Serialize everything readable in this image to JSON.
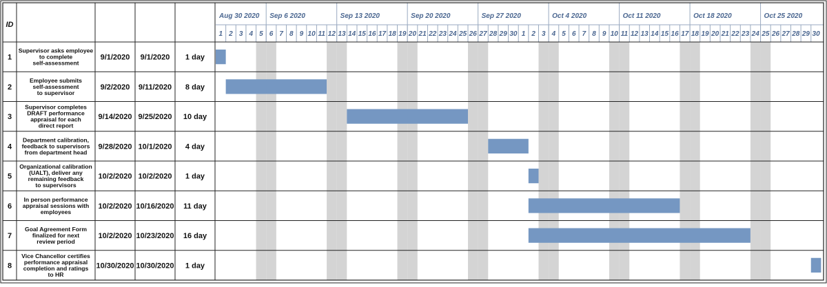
{
  "chart_data": {
    "type": "gantt",
    "id_header": "ID",
    "week_labels": [
      "Aug 30 2020",
      "Sep 6 2020",
      "Sep 13 2020",
      "Sep 20 2020",
      "Sep 27 2020",
      "Oct 4 2020",
      "Oct 11 2020",
      "Oct 18 2020",
      "Oct 25 2020"
    ],
    "day_labels": [
      "1",
      "2",
      "3",
      "4",
      "5",
      "6",
      "7",
      "8",
      "9",
      "10",
      "11",
      "12",
      "13",
      "14",
      "15",
      "16",
      "17",
      "18",
      "19",
      "20",
      "21",
      "22",
      "23",
      "24",
      "25",
      "26",
      "27",
      "28",
      "29",
      "30",
      "1",
      "2",
      "3",
      "4",
      "5",
      "6",
      "7",
      "8",
      "9",
      "10",
      "11",
      "12",
      "13",
      "14",
      "15",
      "16",
      "17",
      "18",
      "19",
      "20",
      "21",
      "22",
      "23",
      "24",
      "25",
      "26",
      "27",
      "28",
      "29",
      "30"
    ],
    "tasks": [
      {
        "id": "1",
        "name_lines": [
          "Supervisor asks employee",
          "to complete",
          "self-assessment"
        ],
        "start": "9/1/2020",
        "finish": "9/1/2020",
        "duration": "1 day",
        "bar_start": "2020-09-01",
        "bar_end": "2020-09-01"
      },
      {
        "id": "2",
        "name_lines": [
          "Employee submits",
          "self-assessment",
          "to supervisor"
        ],
        "start": "9/2/2020",
        "finish": "9/11/2020",
        "duration": "8 day",
        "bar_start": "2020-09-02",
        "bar_end": "2020-09-11"
      },
      {
        "id": "3",
        "name_lines": [
          "Supervisor completes",
          "DRAFT performance",
          "appraisal for each",
          "direct report"
        ],
        "start": "9/14/2020",
        "finish": "9/25/2020",
        "duration": "10 day",
        "bar_start": "2020-09-14",
        "bar_end": "2020-09-25"
      },
      {
        "id": "4",
        "name_lines": [
          "Department calibration,",
          "feedback to supervisors",
          "from department head"
        ],
        "start": "9/28/2020",
        "finish": "10/1/2020",
        "duration": "4 day",
        "bar_start": "2020-09-28",
        "bar_end": "2020-10-01"
      },
      {
        "id": "5",
        "name_lines": [
          "Organizational calibration",
          "(UALT), deliver any",
          "remaining feedback",
          "to supervisors"
        ],
        "start": "10/2/2020",
        "finish": "10/2/2020",
        "duration": "1 day",
        "bar_start": "2020-10-02",
        "bar_end": "2020-10-02"
      },
      {
        "id": "6",
        "name_lines": [
          "In person performance",
          "appraisal sessions with",
          "employees"
        ],
        "start": "10/2/2020",
        "finish": "10/16/2020",
        "duration": "11 day",
        "bar_start": "2020-10-02",
        "bar_end": "2020-10-16"
      },
      {
        "id": "7",
        "name_lines": [
          "Goal Agreement Form",
          "finalized for next",
          "review period"
        ],
        "start": "10/2/2020",
        "finish": "10/23/2020",
        "duration": "16 day",
        "bar_start": "2020-10-02",
        "bar_end": "2020-10-23"
      },
      {
        "id": "8",
        "name_lines": [
          "Vice Chancellor certifies",
          "performance appraisal",
          "completion and ratings",
          "to HR"
        ],
        "start": "10/30/2020",
        "finish": "10/30/2020",
        "duration": "1 day",
        "bar_start": "2020-10-30",
        "bar_end": "2020-10-30"
      }
    ],
    "timeline_start": "2020-09-01",
    "timeline_end": "2020-10-30",
    "weekend_shading": true,
    "colors": {
      "bar": "#7597c2",
      "weekend": "#d4d4d4",
      "header_text": "#4a6690",
      "grid": "#222222",
      "day_separator": "#9aaac0"
    }
  }
}
